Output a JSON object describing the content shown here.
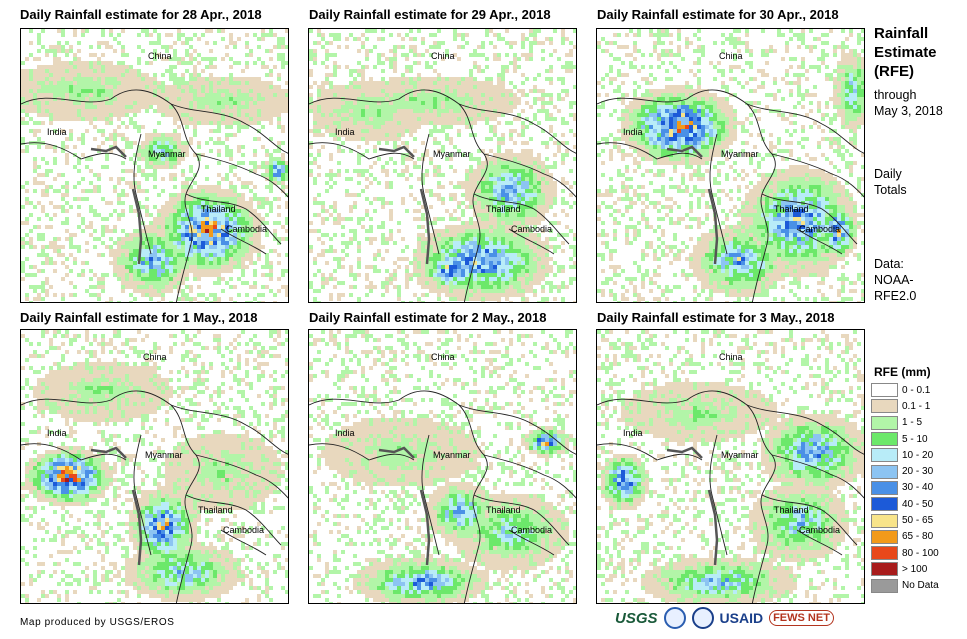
{
  "panels": [
    {
      "title": "Daily Rainfall estimate for 28 Apr., 2018",
      "labels": {
        "china": "China",
        "india": "India",
        "myanmar": "Myanmar",
        "thailand": "Thailand",
        "cambodia": "Cambodia"
      }
    },
    {
      "title": "Daily Rainfall estimate for 29 Apr., 2018",
      "labels": {
        "china": "China",
        "india": "India",
        "myanmar": "Myanmar",
        "thailand": "Thailand",
        "cambodia": "Cambodia"
      }
    },
    {
      "title": "Daily Rainfall estimate for 30 Apr., 2018",
      "labels": {
        "china": "China",
        "india": "India",
        "myanmar": "Myanmar",
        "thailand": "Thailand",
        "cambodia": "Cambodia"
      }
    },
    {
      "title": "Daily Rainfall estimate for 1 May., 2018",
      "labels": {
        "china": "China",
        "india": "India",
        "myanmar": "Myanmar",
        "thailand": "Thailand",
        "cambodia": "Cambodia"
      }
    },
    {
      "title": "Daily Rainfall estimate for 2 May., 2018",
      "labels": {
        "china": "China",
        "india": "India",
        "myanmar": "Myanmar",
        "thailand": "Thailand",
        "cambodia": "Cambodia"
      }
    },
    {
      "title": "Daily Rainfall estimate for 3 May., 2018",
      "labels": {
        "china": "China",
        "india": "India",
        "myanmar": "Myanmar",
        "thailand": "Thailand",
        "cambodia": "Cambodia"
      }
    }
  ],
  "sidebar": {
    "title_line1": "Rainfall",
    "title_line2": "Estimate",
    "title_line3": "(RFE)",
    "through_line1": "through",
    "through_line2": "May 3, 2018",
    "totals_line1": "Daily",
    "totals_line2": "Totals",
    "data_line1": "Data:",
    "data_line2": "NOAA-",
    "data_line3": "RFE2.0"
  },
  "legend": {
    "title": "RFE (mm)",
    "items": [
      {
        "label": "0 - 0.1",
        "color": "#ffffff"
      },
      {
        "label": "0.1 - 1",
        "color": "#e8d8be"
      },
      {
        "label": "1 - 5",
        "color": "#b2f5a8"
      },
      {
        "label": "5 - 10",
        "color": "#6ce86a"
      },
      {
        "label": "10 - 20",
        "color": "#b8ecf8"
      },
      {
        "label": "20 - 30",
        "color": "#8cc4f2"
      },
      {
        "label": "30 - 40",
        "color": "#4a90e6"
      },
      {
        "label": "40 - 50",
        "color": "#1c5ad8"
      },
      {
        "label": "50 - 65",
        "color": "#f8e48a"
      },
      {
        "label": "65 - 80",
        "color": "#f29a1a"
      },
      {
        "label": "80 - 100",
        "color": "#e8481a"
      },
      {
        "label": "> 100",
        "color": "#a81c1c"
      },
      {
        "label": "No Data",
        "color": "#9a9a9a"
      }
    ]
  },
  "credit": "Map produced by USGS/EROS",
  "logos": {
    "usgs": "USGS",
    "usaid": "USAID",
    "fews": "FEWS NET"
  }
}
